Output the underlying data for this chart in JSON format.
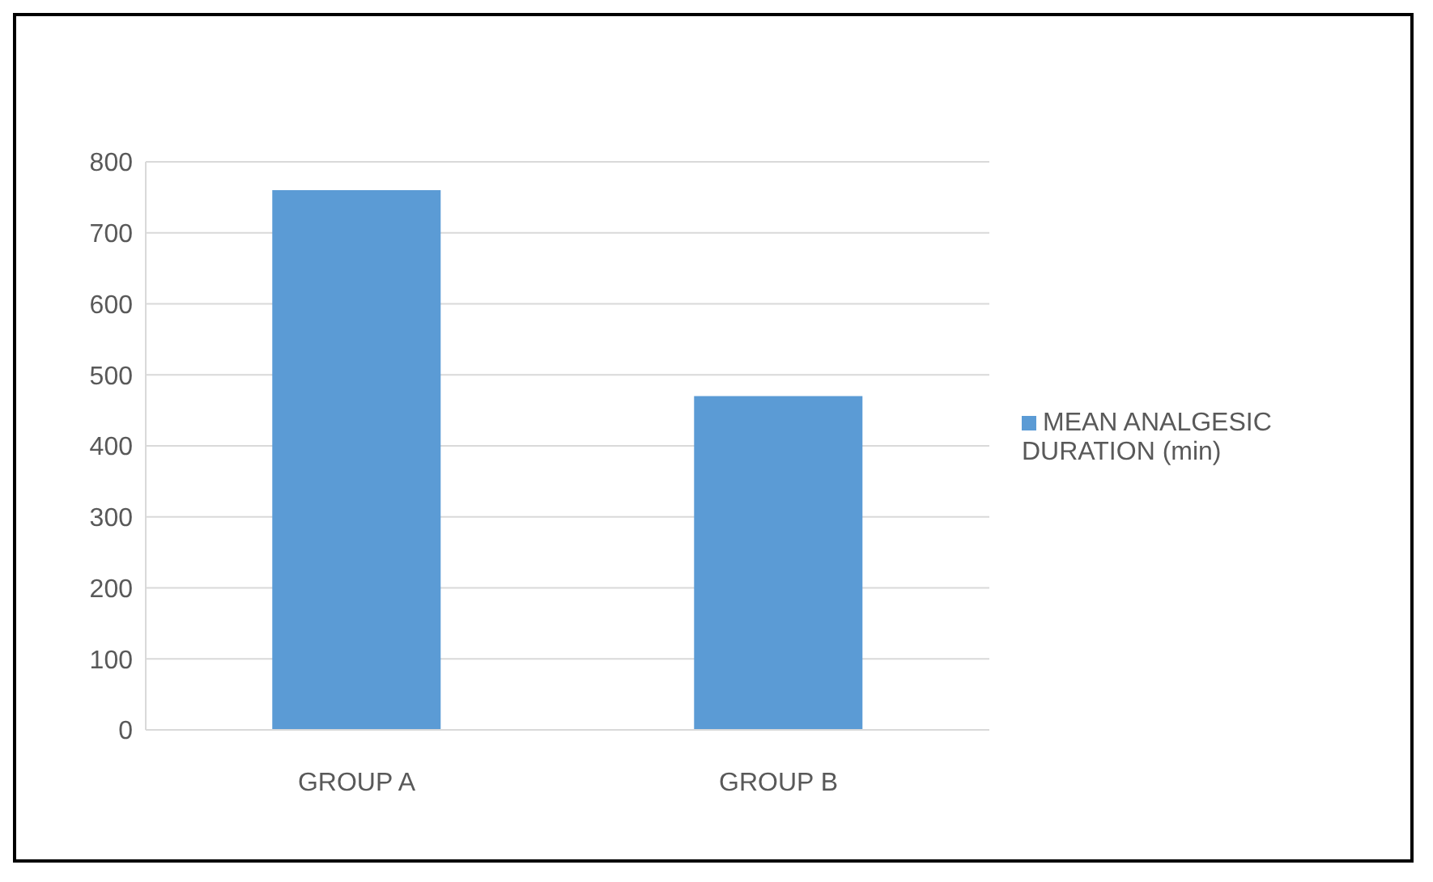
{
  "chart_data": {
    "type": "bar",
    "categories": [
      "GROUP A",
      "GROUP B"
    ],
    "series": [
      {
        "name": "MEAN ANALGESIC DURATION (min)",
        "color": "#5b9bd5",
        "values": [
          760,
          470
        ]
      }
    ],
    "ylim": [
      0,
      800
    ],
    "yticks": [
      0,
      100,
      200,
      300,
      400,
      500,
      600,
      700,
      800
    ],
    "grid": "y",
    "legend": "right"
  }
}
